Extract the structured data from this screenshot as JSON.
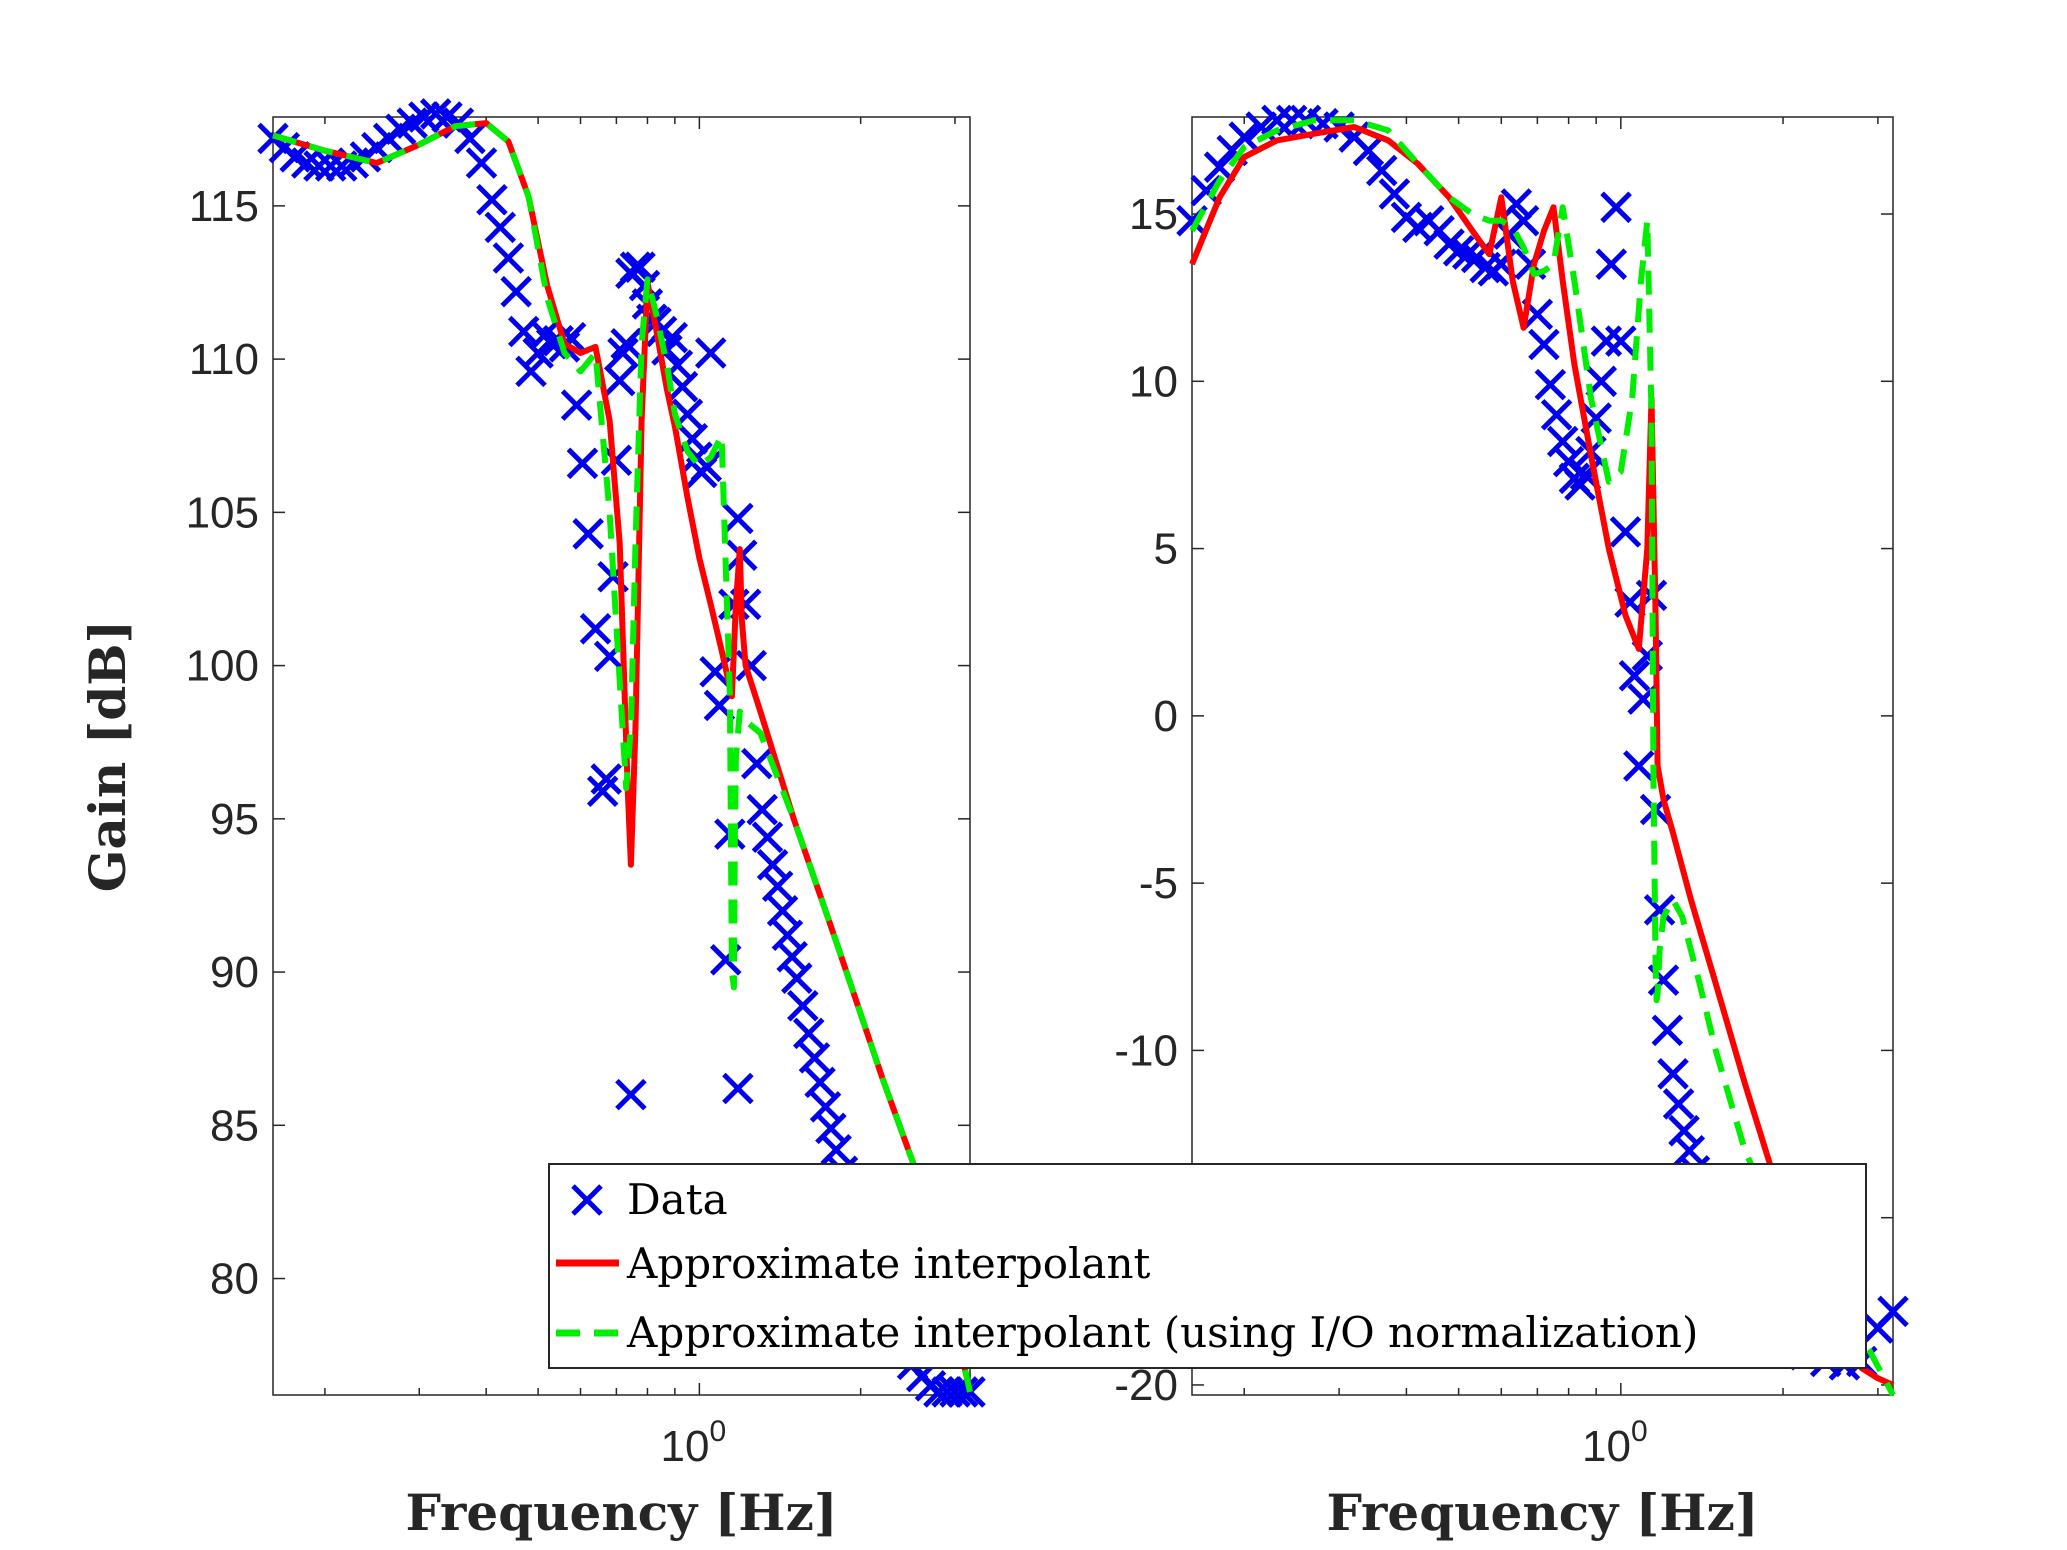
{
  "chart_data": [
    {
      "type": "line",
      "panel": "left",
      "xscale": "log",
      "xlim": [
        0.16,
        3.2
      ],
      "ylim": [
        76.2,
        117.9
      ],
      "xticks": [
        {
          "value": 1,
          "label": "10^0"
        }
      ],
      "yticks": [
        80,
        85,
        90,
        95,
        100,
        105,
        110,
        115
      ],
      "xlabel": "Frequency [Hz]",
      "ylabel": "Gain [dB]",
      "grid": false,
      "colors": {
        "Data": "#0000ee",
        "Approximate interpolant": "#ff0000",
        "Approximate interpolant (using I/O normalization)": "#00ee00"
      },
      "series": [
        {
          "name": "Data",
          "style": "markers-x",
          "x": [
            0.16,
            0.168,
            0.176,
            0.185,
            0.195,
            0.205,
            0.215,
            0.226,
            0.238,
            0.25,
            0.263,
            0.277,
            0.291,
            0.306,
            0.322,
            0.338,
            0.355,
            0.373,
            0.392,
            0.41,
            0.425,
            0.44,
            0.455,
            0.47,
            0.485,
            0.5,
            0.515,
            0.53,
            0.545,
            0.56,
            0.575,
            0.59,
            0.605,
            0.62,
            0.64,
            0.66,
            0.67,
            0.68,
            0.69,
            0.7,
            0.71,
            0.72,
            0.73,
            0.745,
            0.76,
            0.775,
            0.79,
            0.8,
            0.815,
            0.83,
            0.85,
            0.87,
            0.89,
            0.91,
            0.93,
            0.95,
            0.97,
            0.99,
            1.01,
            1.03,
            1.05,
            1.07,
            1.09,
            1.12,
            1.14,
            1.16,
            1.18,
            1.2,
            1.22,
            1.25,
            1.28,
            1.31,
            1.34,
            1.37,
            1.4,
            1.43,
            1.46,
            1.49,
            1.52,
            1.56,
            1.6,
            1.64,
            1.68,
            1.72,
            1.76,
            1.8,
            1.85,
            1.9,
            1.95,
            2.0,
            2.05,
            2.1,
            2.15,
            2.2,
            2.25,
            2.3,
            2.4,
            2.5,
            2.6,
            2.7,
            2.8,
            2.9,
            3.0,
            3.1,
            3.2
          ],
          "y": [
            117.2,
            116.9,
            116.6,
            116.4,
            116.3,
            116.3,
            116.3,
            116.4,
            116.6,
            116.9,
            117.2,
            117.5,
            117.7,
            117.9,
            118.0,
            117.9,
            117.7,
            117.2,
            116.4,
            115.2,
            114.3,
            113.3,
            112.2,
            110.9,
            109.6,
            110.2,
            110.8,
            110.5,
            110.6,
            110.4,
            110.7,
            108.5,
            106.6,
            104.3,
            101.2,
            95.9,
            96.3,
            100.3,
            102.9,
            106.7,
            109.3,
            110.2,
            110.5,
            112.8,
            113.0,
            113.0,
            112.4,
            111.8,
            111.3,
            111.2,
            110.9,
            110.3,
            110.7,
            109.8,
            109.1,
            108.2,
            107.4,
            106.8,
            106.3,
            106.5,
            110.2,
            99.8,
            98.7,
            90.4,
            94.5,
            102.0,
            104.8,
            103.6,
            102.0,
            100.0,
            96.8,
            95.3,
            94.4,
            93.5,
            92.8,
            92.0,
            91.2,
            90.5,
            89.8,
            88.9,
            88.0,
            87.2,
            86.4,
            85.6,
            84.9,
            84.2,
            83.5,
            82.8,
            82.1,
            81.4,
            80.8,
            80.2,
            79.6,
            79.0,
            78.5,
            78.0,
            77.6,
            77.2,
            76.8,
            76.5,
            76.3,
            76.3,
            76.3,
            76.3,
            76.3
          ]
        },
        {
          "name": "",
          "note": "outliers",
          "style": "markers-x",
          "x": [
            0.745,
            1.18
          ],
          "y": [
            86.0,
            86.2
          ]
        },
        {
          "name": "Approximate interpolant",
          "style": "solid",
          "x": [
            0.16,
            0.2,
            0.25,
            0.3,
            0.35,
            0.4,
            0.44,
            0.48,
            0.52,
            0.56,
            0.6,
            0.64,
            0.68,
            0.71,
            0.735,
            0.745,
            0.76,
            0.78,
            0.8,
            0.83,
            0.87,
            0.9,
            0.95,
            1.0,
            1.05,
            1.1,
            1.15,
            1.17,
            1.19,
            1.2,
            1.22,
            1.3,
            1.5,
            1.8,
            2.2,
            2.6,
            3.0,
            3.2
          ],
          "y": [
            117.3,
            116.8,
            116.4,
            117.0,
            117.6,
            117.7,
            117.1,
            115.3,
            112.4,
            110.5,
            110.2,
            110.4,
            108.0,
            104.0,
            96.0,
            93.5,
            98.0,
            108.0,
            112.5,
            111.0,
            109.0,
            107.8,
            105.5,
            103.5,
            102.0,
            100.5,
            99.0,
            102.0,
            103.8,
            101.5,
            100.0,
            98.5,
            95.0,
            91.0,
            86.5,
            83.0,
            78.5,
            76.3
          ]
        },
        {
          "name": "Approximate interpolant (using I/O normalization)",
          "style": "dashed",
          "x": [
            0.16,
            0.2,
            0.25,
            0.3,
            0.35,
            0.4,
            0.44,
            0.48,
            0.52,
            0.56,
            0.6,
            0.64,
            0.68,
            0.71,
            0.73,
            0.745,
            0.76,
            0.78,
            0.8,
            0.83,
            0.87,
            0.9,
            0.95,
            1.0,
            1.05,
            1.1,
            1.14,
            1.15,
            1.16,
            1.165,
            1.17,
            1.19,
            1.22,
            1.3,
            1.5,
            1.8,
            2.2,
            2.6,
            3.0,
            3.2
          ],
          "y": [
            117.3,
            116.8,
            116.4,
            117.0,
            117.6,
            117.7,
            117.1,
            115.3,
            112.0,
            110.2,
            109.6,
            110.2,
            105.0,
            99.5,
            96.0,
            98.0,
            104.0,
            110.5,
            112.6,
            111.5,
            109.8,
            108.2,
            107.0,
            106.5,
            106.8,
            107.5,
            99.0,
            90.0,
            89.5,
            94.5,
            97.0,
            98.5,
            98.2,
            97.8,
            95.0,
            91.0,
            86.5,
            83.0,
            78.5,
            76.3
          ]
        }
      ]
    },
    {
      "type": "line",
      "panel": "right",
      "xscale": "log",
      "xlim": [
        0.16,
        3.2
      ],
      "ylim": [
        -20.3,
        17.9
      ],
      "xticks": [
        {
          "value": 1,
          "label": "10^0"
        }
      ],
      "yticks": [
        -20,
        -15,
        -10,
        -5,
        0,
        5,
        10,
        15
      ],
      "xlabel": "Frequency [Hz]",
      "ylabel": "",
      "grid": false,
      "series": [
        {
          "name": "Data",
          "style": "markers-x",
          "x": [
            0.16,
            0.17,
            0.18,
            0.19,
            0.2,
            0.215,
            0.23,
            0.245,
            0.26,
            0.28,
            0.3,
            0.32,
            0.34,
            0.36,
            0.38,
            0.4,
            0.42,
            0.44,
            0.46,
            0.48,
            0.5,
            0.52,
            0.54,
            0.56,
            0.58,
            0.6,
            0.62,
            0.64,
            0.66,
            0.68,
            0.7,
            0.72,
            0.74,
            0.76,
            0.78,
            0.8,
            0.82,
            0.84,
            0.86,
            0.88,
            0.9,
            0.92,
            0.94,
            0.96,
            0.98,
            1.0,
            1.02,
            1.04,
            1.06,
            1.08,
            1.1,
            1.12,
            1.14,
            1.16,
            1.18,
            1.2,
            1.22,
            1.25,
            1.28,
            1.31,
            1.34,
            1.37,
            1.4,
            1.43,
            1.46,
            1.5,
            1.55,
            1.6,
            1.65,
            1.7,
            1.75,
            1.8,
            1.9,
            2.0,
            2.1,
            2.2,
            2.4,
            2.6,
            2.8,
            3.0,
            3.2
          ],
          "y": [
            14.8,
            15.7,
            16.4,
            16.9,
            17.3,
            17.6,
            17.8,
            17.8,
            17.8,
            17.7,
            17.6,
            17.3,
            16.9,
            16.3,
            15.6,
            14.9,
            14.6,
            14.8,
            14.5,
            14.1,
            13.9,
            13.8,
            13.7,
            13.4,
            13.3,
            13.5,
            14.4,
            15.3,
            14.8,
            13.5,
            12.0,
            11.1,
            9.9,
            9.0,
            8.2,
            7.6,
            7.1,
            6.9,
            7.2,
            7.9,
            8.9,
            10.0,
            11.2,
            13.5,
            15.2,
            11.2,
            5.5,
            3.4,
            1.2,
            -1.5,
            0.5,
            1.8,
            3.6,
            -2.8,
            -5.8,
            -7.9,
            -9.4,
            -10.7,
            -11.6,
            -12.4,
            -13.0,
            -13.6,
            -14.1,
            -14.6,
            -15.1,
            -15.6,
            -16.1,
            -16.5,
            -16.9,
            -17.3,
            -17.6,
            -17.9,
            -18.3,
            -18.6,
            -18.9,
            -19.1,
            -19.3,
            -19.4,
            -19.3,
            -18.3,
            -17.8
          ]
        },
        {
          "name": "Approximate interpolant",
          "style": "solid",
          "x": [
            0.16,
            0.18,
            0.2,
            0.23,
            0.27,
            0.32,
            0.37,
            0.42,
            0.48,
            0.53,
            0.57,
            0.6,
            0.63,
            0.66,
            0.69,
            0.72,
            0.75,
            0.78,
            0.82,
            0.88,
            0.95,
            1.02,
            1.08,
            1.12,
            1.14,
            1.16,
            1.17,
            1.2,
            1.25,
            1.35,
            1.5,
            1.7,
            1.9,
            2.2,
            2.5,
            2.8,
            3.0,
            3.2
          ],
          "y": [
            13.5,
            15.5,
            16.7,
            17.2,
            17.4,
            17.6,
            17.2,
            16.5,
            15.5,
            14.5,
            13.8,
            15.5,
            13.0,
            11.6,
            13.5,
            14.5,
            15.2,
            13.0,
            10.5,
            7.8,
            5.0,
            3.0,
            2.0,
            5.0,
            9.5,
            3.0,
            -1.5,
            -2.5,
            -3.5,
            -5.5,
            -8.0,
            -11.0,
            -13.5,
            -16.5,
            -18.5,
            -19.5,
            -19.8,
            -20.0
          ]
        },
        {
          "name": "Approximate interpolant (using I/O normalization)",
          "style": "dashed",
          "x": [
            0.16,
            0.18,
            0.2,
            0.23,
            0.27,
            0.32,
            0.37,
            0.42,
            0.48,
            0.53,
            0.57,
            0.6,
            0.63,
            0.66,
            0.69,
            0.72,
            0.75,
            0.78,
            0.82,
            0.88,
            0.95,
            1.0,
            1.05,
            1.09,
            1.12,
            1.14,
            1.15,
            1.16,
            1.165,
            1.17,
            1.18,
            1.2,
            1.25,
            1.3,
            1.4,
            1.5,
            1.7,
            2.0,
            2.3,
            2.6,
            2.9,
            3.2
          ],
          "y": [
            14.5,
            16.0,
            17.0,
            17.5,
            17.8,
            17.8,
            17.5,
            16.5,
            15.5,
            15.0,
            14.8,
            14.8,
            14.6,
            14.0,
            13.2,
            13.3,
            13.5,
            15.2,
            13.0,
            9.5,
            7.0,
            7.3,
            9.5,
            13.0,
            14.8,
            9.0,
            -2.0,
            -7.5,
            -8.5,
            -8.3,
            -7.0,
            -6.0,
            -5.5,
            -6.0,
            -8.0,
            -10.0,
            -13.0,
            -15.5,
            -17.0,
            -18.0,
            -19.0,
            -20.3
          ]
        }
      ]
    }
  ],
  "legend": {
    "items": [
      {
        "label": "Data",
        "style": "markers-x",
        "color": "#0000ee"
      },
      {
        "label": "Approximate interpolant",
        "style": "solid",
        "color": "#ff0000"
      },
      {
        "label": "Approximate interpolant (using I/O normalization)",
        "style": "dashed",
        "color": "#00ee00"
      }
    ]
  }
}
